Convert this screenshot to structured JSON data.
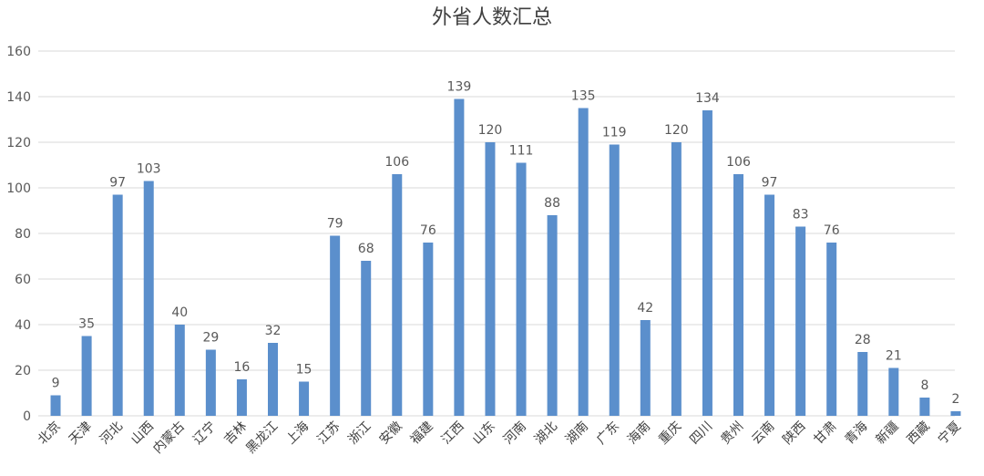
{
  "chart_data": {
    "type": "bar",
    "title": "外省人数汇总",
    "xlabel": "",
    "ylabel": "",
    "ylim": [
      0,
      160
    ],
    "yticks": [
      0,
      20,
      40,
      60,
      80,
      100,
      120,
      140,
      160
    ],
    "grid": true,
    "legend": "none",
    "bar_color": "#5b8fcc",
    "categories": [
      "北京",
      "天津",
      "河北",
      "山西",
      "内蒙古",
      "辽宁",
      "吉林",
      "黑龙江",
      "上海",
      "江苏",
      "浙江",
      "安徽",
      "福建",
      "江西",
      "山东",
      "河南",
      "湖北",
      "湖南",
      "广东",
      "海南",
      "重庆",
      "四川",
      "贵州",
      "云南",
      "陕西",
      "甘肃",
      "青海",
      "新疆",
      "西藏",
      "宁夏"
    ],
    "values": [
      9,
      35,
      97,
      103,
      40,
      29,
      16,
      32,
      15,
      79,
      68,
      106,
      76,
      139,
      120,
      111,
      88,
      135,
      119,
      42,
      120,
      134,
      106,
      97,
      83,
      76,
      28,
      21,
      8,
      2
    ]
  }
}
